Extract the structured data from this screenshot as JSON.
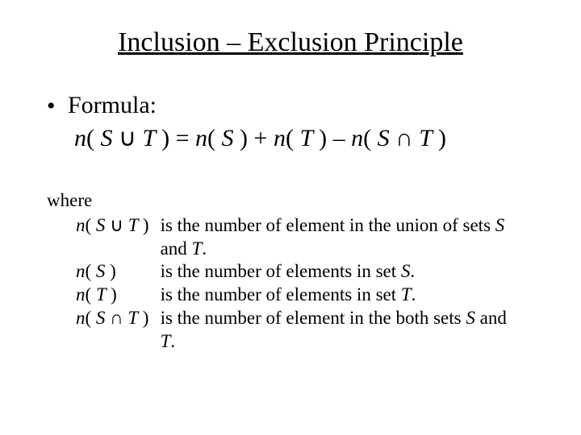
{
  "title": "Inclusion – Exclusion Principle",
  "bullet": {
    "marker": "•",
    "label": "Formula:"
  },
  "formula": {
    "pre": "n",
    "open1": "( ",
    "s1": "S ",
    "union": "∪",
    "t1": " T ",
    "close1": ") ",
    "eq": "= ",
    "n2": "n",
    "open2": "( ",
    "s2": "S ",
    "close2": ") ",
    "plus": "+ ",
    "n3": "n",
    "open3": "( ",
    "t3": "T ",
    "close3": ") ",
    "minus": "– ",
    "n4": "n",
    "open4": "( ",
    "s4": "S ",
    "inter": "∩",
    "t4": " T ",
    "close4": ")"
  },
  "where": "where",
  "defs": {
    "r1": {
      "n": "n",
      "open": "( ",
      "a": "S ",
      "op": "∪",
      "b": " T ",
      "close": ")",
      "desc_a": "is the number of element in the union of sets ",
      "s": "S",
      "and": " and ",
      "t": "T",
      "dot": "."
    },
    "r2": {
      "n": "n",
      "open": "( ",
      "a": "S ",
      "close": ")",
      "desc_a": "is the number of elements in set ",
      "s": "S",
      "dot": "."
    },
    "r3": {
      "n": "n",
      "open": "( ",
      "a": "T ",
      "close": ")",
      "desc_a": "is the number of elements in set ",
      "t": "T",
      "dot": "."
    },
    "r4": {
      "n": "n",
      "open": "( ",
      "a": "S ",
      "op": "∩",
      "b": " T ",
      "close": ")",
      "desc_a": "is the number of element in the both sets ",
      "s": "S",
      "and": " and ",
      "t": "T",
      "dot": "."
    }
  }
}
